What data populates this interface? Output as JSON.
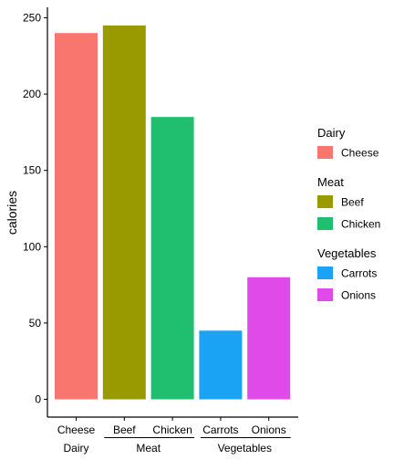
{
  "chart_data": {
    "type": "bar",
    "title": "",
    "xlabel": "",
    "ylabel": "calories",
    "ylim": [
      0,
      250
    ],
    "y_ticks": [
      0,
      50,
      100,
      150,
      200,
      250
    ],
    "grid": false,
    "legend_position": "right",
    "categories": [
      "Cheese",
      "Beef",
      "Chicken",
      "Carrots",
      "Onions"
    ],
    "values": [
      240,
      245,
      185,
      45,
      80
    ],
    "colors": [
      "#F8766D",
      "#999900",
      "#1FBF6F",
      "#1AA3F5",
      "#E04AE8"
    ],
    "groups": [
      {
        "name": "Dairy",
        "items": [
          "Cheese"
        ]
      },
      {
        "name": "Meat",
        "items": [
          "Beef",
          "Chicken"
        ]
      },
      {
        "name": "Vegetables",
        "items": [
          "Carrots",
          "Onions"
        ]
      }
    ]
  }
}
